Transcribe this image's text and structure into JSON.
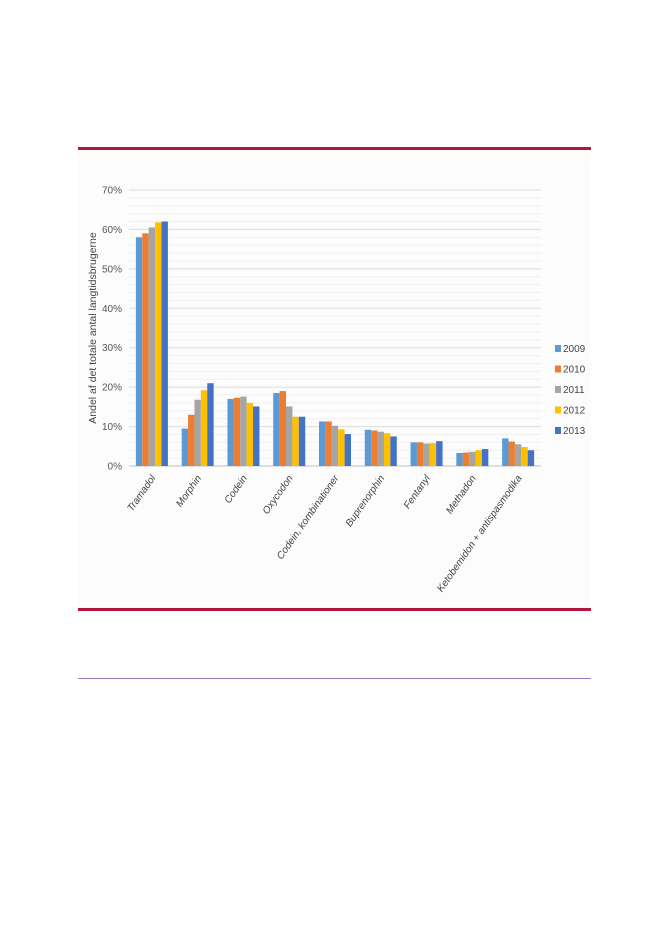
{
  "chart_data": {
    "type": "bar",
    "title": "",
    "xlabel": "",
    "ylabel": "Andel af det totale antal langtidsbrugerne",
    "ylim": [
      0,
      70
    ],
    "yticks": [
      "0%",
      "10%",
      "20%",
      "30%",
      "40%",
      "50%",
      "60%",
      "70%"
    ],
    "grid": true,
    "legend_position": "right",
    "categories": [
      "Tramadol",
      "Morphin",
      "Codein",
      "Oxycodon",
      "Codein, kombinationer",
      "Buprenorphin",
      "Fentanyl",
      "Methadon",
      "Ketobemidon + antispasmodika"
    ],
    "series": [
      {
        "name": "2009",
        "color": "#5b9bd5",
        "values": [
          58,
          9.5,
          17,
          18.5,
          11.3,
          9.2,
          6,
          3.3,
          7
        ]
      },
      {
        "name": "2010",
        "color": "#ed7d31",
        "values": [
          59,
          13,
          17.3,
          19,
          11.3,
          9,
          6,
          3.4,
          6.2
        ]
      },
      {
        "name": "2011",
        "color": "#a5a5a5",
        "values": [
          60.5,
          16.8,
          17.6,
          15.1,
          10.2,
          8.7,
          5.7,
          3.6,
          5.5
        ]
      },
      {
        "name": "2012",
        "color": "#ffc000",
        "values": [
          61.8,
          19.2,
          16,
          12.5,
          9.3,
          8.3,
          5.8,
          4,
          4.8
        ]
      },
      {
        "name": "2013",
        "color": "#4472c4",
        "values": [
          62,
          21,
          15.1,
          12.5,
          8.1,
          7.5,
          6.3,
          4.3,
          4
        ]
      }
    ]
  }
}
